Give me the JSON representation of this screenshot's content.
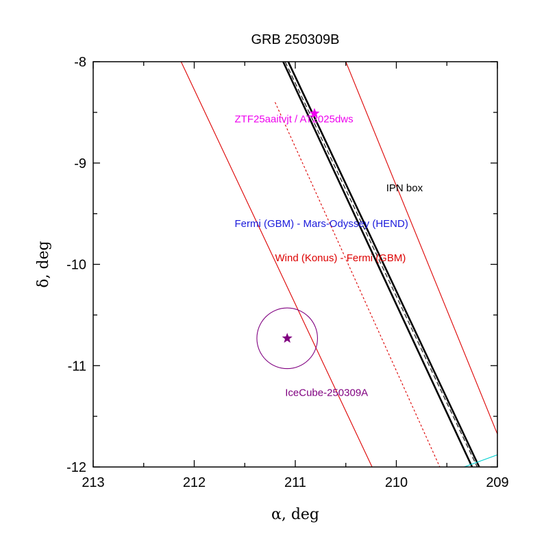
{
  "chart_data": {
    "type": "line",
    "title": "GRB 250309B",
    "xlabel": "α, deg",
    "ylabel": "δ, deg",
    "xlim": [
      213,
      209
    ],
    "ylim": [
      -12,
      -8
    ],
    "x_reversed": true,
    "grid": false,
    "xticks": [
      213,
      212,
      211,
      210,
      209
    ],
    "xtick_labels": [
      "213",
      "212",
      "211",
      "210",
      "209"
    ],
    "yticks": [
      -8,
      -9,
      -10,
      -11,
      -12
    ],
    "ytick_labels": [
      "-8",
      "-9",
      "-10",
      "-11",
      "-12"
    ],
    "colors": {
      "wind_fermi": "#dd0000",
      "fermi_odyssey": "#1a1adb",
      "ipn": "#000000",
      "icecube": "#800080",
      "ztf": "#ee00ee",
      "cyan": "#00d0d0"
    },
    "series": [
      {
        "name": "Wind (Konus) - Fermi (GBM)",
        "style": "solid",
        "color": "#dd0000",
        "points": [
          [
            212.13,
            -8.0
          ],
          [
            210.24,
            -12.0
          ]
        ]
      },
      {
        "name": "Wind (Konus) - Fermi (GBM)",
        "style": "solid",
        "color": "#dd0000",
        "points": [
          [
            210.5,
            -8.0
          ],
          [
            208.99,
            -11.7
          ]
        ]
      },
      {
        "name": "Wind (Konus) - Fermi (GBM)",
        "style": "dashed",
        "color": "#dd0000",
        "points": [
          [
            211.2,
            -8.4
          ],
          [
            209.57,
            -12.0
          ]
        ]
      },
      {
        "name": "Fermi (GBM) - Mars-Odyssey (HEND)",
        "style": "dashed",
        "color": "#000000",
        "points": [
          [
            211.1,
            -8.0
          ],
          [
            209.2,
            -12.0
          ]
        ]
      },
      {
        "name": "IPN box",
        "style": "bold",
        "color": "#000000",
        "points": [
          [
            211.12,
            -8.0
          ],
          [
            209.25,
            -12.0
          ]
        ]
      },
      {
        "name": "IPN box",
        "style": "bold",
        "color": "#000000",
        "points": [
          [
            211.07,
            -8.0
          ],
          [
            209.18,
            -12.0
          ]
        ]
      },
      {
        "name": "",
        "style": "solid",
        "color": "#00d0d0",
        "points": [
          [
            209.33,
            -12.0
          ],
          [
            209.0,
            -11.88
          ]
        ]
      }
    ],
    "markers": [
      {
        "name": "ZTF25aaitvjt / AT2025dws",
        "x": 210.81,
        "y": -8.51,
        "color": "#ee00ee",
        "symbol": "star"
      },
      {
        "name": "IceCube-250309A",
        "x": 211.08,
        "y": -10.73,
        "color": "#800080",
        "symbol": "star",
        "circle_radius_deg": 0.3
      }
    ],
    "annotations": [
      {
        "text": "ZTF25aaitvjt / AT2025dws",
        "x": 211.6,
        "y": -8.6,
        "color": "#ee00ee"
      },
      {
        "text": "IPN box",
        "x": 210.1,
        "y": -9.28,
        "color": "#000000"
      },
      {
        "text": "Fermi (GBM) - Mars-Odyssey (HEND)",
        "x": 211.6,
        "y": -9.63,
        "color": "#1a1adb"
      },
      {
        "text": "Wind (Konus) - Fermi (GBM)",
        "x": 211.2,
        "y": -9.97,
        "color": "#dd0000"
      },
      {
        "text": "IceCube-250309A",
        "x": 211.1,
        "y": -11.3,
        "color": "#800080"
      }
    ]
  }
}
